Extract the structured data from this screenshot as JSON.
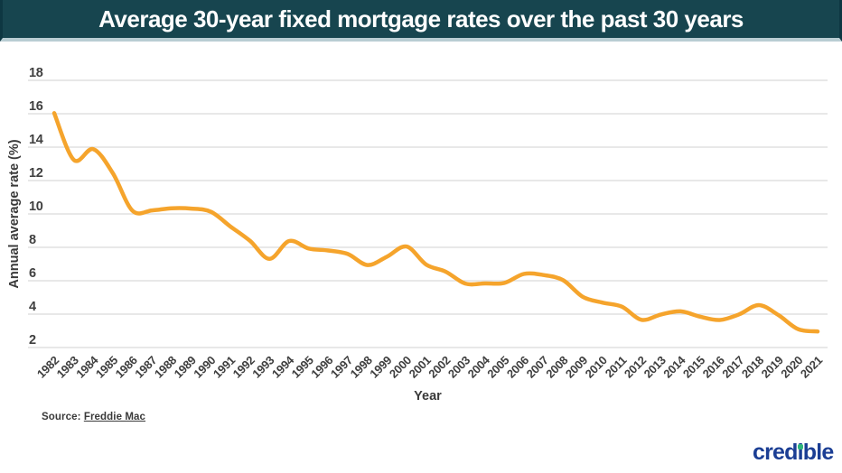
{
  "header": {
    "title": "Average 30-year fixed mortgage rates over the past 30 years",
    "bg_color": "#17454F",
    "edge_color": "#0E3742",
    "bottom_band_color": "#B9CDD3",
    "text_color": "#FFFFFF"
  },
  "chart_data": {
    "type": "line",
    "title": "Average 30-year fixed mortgage rates over the past 30 years",
    "categories": [
      "1982",
      "1983",
      "1984",
      "1985",
      "1986",
      "1987",
      "1988",
      "1989",
      "1990",
      "1991",
      "1992",
      "1993",
      "1994",
      "1995",
      "1996",
      "1997",
      "1998",
      "1999",
      "2000",
      "2001",
      "2002",
      "2003",
      "2004",
      "2005",
      "2006",
      "2007",
      "2008",
      "2009",
      "2010",
      "2011",
      "2012",
      "2013",
      "2014",
      "2015",
      "2016",
      "2017",
      "2018",
      "2019",
      "2020",
      "2021"
    ],
    "values": [
      16.04,
      13.24,
      13.88,
      12.43,
      10.19,
      10.21,
      10.34,
      10.32,
      10.13,
      9.25,
      8.39,
      7.31,
      8.38,
      7.93,
      7.81,
      7.6,
      6.94,
      7.44,
      8.05,
      6.97,
      6.54,
      5.83,
      5.84,
      5.87,
      6.41,
      6.34,
      6.03,
      5.04,
      4.69,
      4.45,
      3.66,
      3.98,
      4.17,
      3.85,
      3.65,
      3.99,
      4.54,
      3.94,
      3.1,
      2.96
    ],
    "xlabel": "Year",
    "ylabel": "Annual average rate (%)",
    "ylim": [
      2,
      18
    ],
    "yticks": [
      2,
      4,
      6,
      8,
      10,
      12,
      14,
      16,
      18
    ],
    "grid": "horizontal",
    "legend": false,
    "line_color": "#F5A42C",
    "grid_color": "#DADADA",
    "tick_text_color": "#3F3F3F",
    "axis_title_color": "#3A3A3A"
  },
  "source": {
    "label": "Source:",
    "link": "Freddie Mac"
  },
  "brand": {
    "pre": "cred",
    "i": "i",
    "post": "ble",
    "color": "#1B3E94",
    "dot_color": "#2FB57C"
  }
}
